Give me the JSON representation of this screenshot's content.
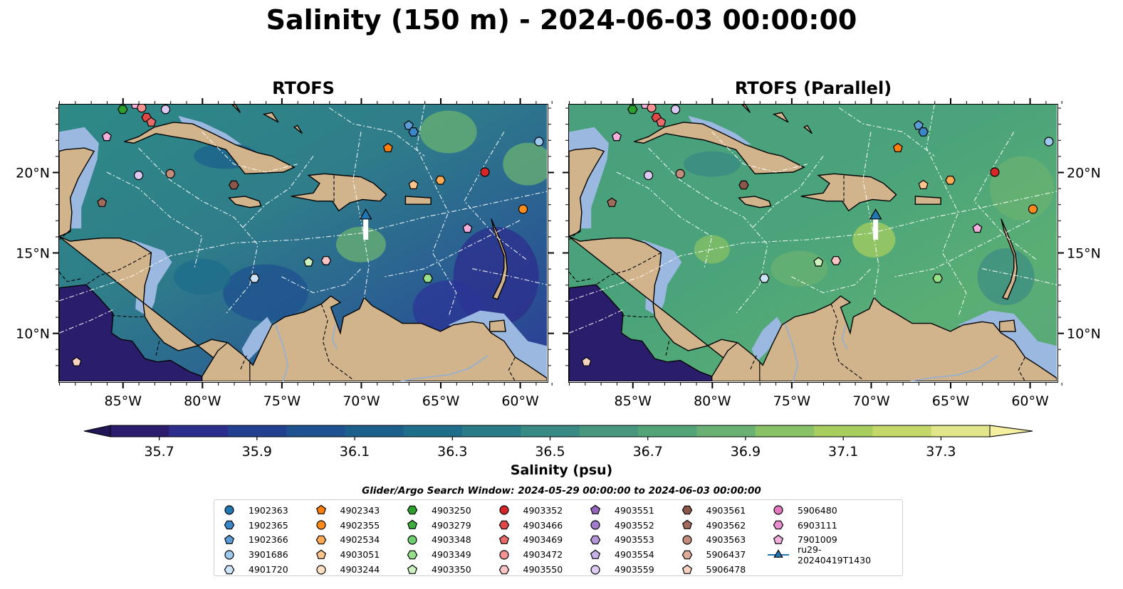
{
  "title": "Salinity (150 m) - 2024-06-03 00:00:00",
  "panels": [
    {
      "title": "RTOFS"
    },
    {
      "title": "RTOFS (Parallel)"
    }
  ],
  "axes": {
    "lon_labels": [
      "85°W",
      "80°W",
      "75°W",
      "70°W",
      "65°W",
      "60°W"
    ],
    "lon_values": [
      -85,
      -80,
      -75,
      -70,
      -65,
      -60
    ],
    "lat_labels": [
      "20°N",
      "15°N",
      "10°N"
    ],
    "lat_values": [
      20,
      15,
      10
    ],
    "lon_range": [
      -89,
      -58.3
    ],
    "lat_range": [
      7.0,
      24.2
    ]
  },
  "colorbar": {
    "label": "Salinity (psu)",
    "ticks": [
      "35.7",
      "35.9",
      "36.1",
      "36.3",
      "36.5",
      "36.7",
      "36.9",
      "37.1",
      "37.3"
    ],
    "tick_values": [
      35.7,
      35.9,
      36.1,
      36.3,
      36.5,
      36.7,
      36.9,
      37.1,
      37.3
    ],
    "range": [
      35.6,
      37.4
    ],
    "extend": "both",
    "colors": [
      "#2b1c6e",
      "#2c2d8c",
      "#233f8f",
      "#1d518f",
      "#1b608d",
      "#1e6e8b",
      "#2a7b88",
      "#388a84",
      "#47977f",
      "#54a479",
      "#69b172",
      "#88c166",
      "#a6cd5e",
      "#c4d86a",
      "#e2e68a"
    ]
  },
  "search_window": "Glider/Argo Search Window: 2024-05-29 00:00:00 to 2024-06-03 00:00:00",
  "map_colors": {
    "land": "#d2b48c",
    "shelf": "#9bb8e0",
    "pacific": "#2a1d6b"
  },
  "legend": {
    "items": [
      {
        "label": "1902363",
        "marker": "circle",
        "color": "#1f77b4"
      },
      {
        "label": "1902365",
        "marker": "hexagon",
        "color": "#3a86c8"
      },
      {
        "label": "1902366",
        "marker": "pentagon",
        "color": "#5a9bd8"
      },
      {
        "label": "3901686",
        "marker": "circle",
        "color": "#9ec9ee"
      },
      {
        "label": "4901720",
        "marker": "hexagon",
        "color": "#cde4f8"
      },
      {
        "label": "4902343",
        "marker": "pentagon",
        "color": "#ff7f0e"
      },
      {
        "label": "4902355",
        "marker": "circle",
        "color": "#ff8c1a"
      },
      {
        "label": "4902534",
        "marker": "hexagon",
        "color": "#ffaa55"
      },
      {
        "label": "4903051",
        "marker": "pentagon",
        "color": "#ffc48c"
      },
      {
        "label": "4903244",
        "marker": "circle",
        "color": "#ffe0c0"
      },
      {
        "label": "4903250",
        "marker": "hexagon",
        "color": "#2ca02c"
      },
      {
        "label": "4903279",
        "marker": "pentagon",
        "color": "#3caf3c"
      },
      {
        "label": "4903348",
        "marker": "circle",
        "color": "#6fcf6f"
      },
      {
        "label": "4903349",
        "marker": "hexagon",
        "color": "#98df8a"
      },
      {
        "label": "4903350",
        "marker": "pentagon",
        "color": "#ccf2c0"
      },
      {
        "label": "4903352",
        "marker": "circle",
        "color": "#d62728"
      },
      {
        "label": "4903466",
        "marker": "hexagon",
        "color": "#e04848"
      },
      {
        "label": "4903469",
        "marker": "pentagon",
        "color": "#eb6a6a"
      },
      {
        "label": "4903472",
        "marker": "circle",
        "color": "#f59393"
      },
      {
        "label": "4903550",
        "marker": "hexagon",
        "color": "#fbc4c4"
      },
      {
        "label": "4903551",
        "marker": "pentagon",
        "color": "#9467bd"
      },
      {
        "label": "4903552",
        "marker": "circle",
        "color": "#a27ccb"
      },
      {
        "label": "4903553",
        "marker": "hexagon",
        "color": "#b596d8"
      },
      {
        "label": "4903554",
        "marker": "pentagon",
        "color": "#c7b0e5"
      },
      {
        "label": "4903559",
        "marker": "circle",
        "color": "#dccaf2"
      },
      {
        "label": "4903561",
        "marker": "hexagon",
        "color": "#8c564b"
      },
      {
        "label": "4903562",
        "marker": "pentagon",
        "color": "#a06a5c"
      },
      {
        "label": "4903563",
        "marker": "circle",
        "color": "#c48c7c"
      },
      {
        "label": "5906437",
        "marker": "hexagon",
        "color": "#e0ab9a"
      },
      {
        "label": "5906478",
        "marker": "pentagon",
        "color": "#f8d3c2"
      },
      {
        "label": "5906480",
        "marker": "circle",
        "color": "#e377c2"
      },
      {
        "label": "6903111",
        "marker": "hexagon",
        "color": "#e98fcf"
      },
      {
        "label": "7901009",
        "marker": "pentagon",
        "color": "#f2aedd"
      },
      {
        "label": "ru29-20240419T1430",
        "marker": "triangle",
        "color": "#1f77b4"
      }
    ]
  },
  "floats": [
    {
      "lon": -85.0,
      "lat": 23.9,
      "marker": "hexagon",
      "color": "#2ca02c"
    },
    {
      "lon": -84.2,
      "lat": 24.2,
      "marker": "pentagon",
      "color": "#f2aedd"
    },
    {
      "lon": -83.8,
      "lat": 24.0,
      "marker": "circle",
      "color": "#f59393"
    },
    {
      "lon": -82.3,
      "lat": 23.9,
      "marker": "circle",
      "color": "#dccaf2"
    },
    {
      "lon": -83.5,
      "lat": 23.4,
      "marker": "hexagon",
      "color": "#e04848"
    },
    {
      "lon": -83.2,
      "lat": 23.1,
      "marker": "pentagon",
      "color": "#eb6a6a"
    },
    {
      "lon": -86.0,
      "lat": 22.2,
      "marker": "pentagon",
      "color": "#f2aedd"
    },
    {
      "lon": -84.0,
      "lat": 19.8,
      "marker": "circle",
      "color": "#dccaf2"
    },
    {
      "lon": -82.0,
      "lat": 19.9,
      "marker": "circle",
      "color": "#c48c7c"
    },
    {
      "lon": -78.0,
      "lat": 19.2,
      "marker": "hexagon",
      "color": "#8c564b"
    },
    {
      "lon": -86.3,
      "lat": 18.1,
      "marker": "pentagon",
      "color": "#a06a5c"
    },
    {
      "lon": -67.0,
      "lat": 22.9,
      "marker": "pentagon",
      "color": "#5a9bd8"
    },
    {
      "lon": -66.7,
      "lat": 22.5,
      "marker": "hexagon",
      "color": "#3a86c8"
    },
    {
      "lon": -68.3,
      "lat": 21.5,
      "marker": "pentagon",
      "color": "#ff7f0e"
    },
    {
      "lon": -58.8,
      "lat": 21.9,
      "marker": "circle",
      "color": "#9ec9ee"
    },
    {
      "lon": -62.2,
      "lat": 20.0,
      "marker": "circle",
      "color": "#d62728"
    },
    {
      "lon": -65.0,
      "lat": 19.5,
      "marker": "hexagon",
      "color": "#ffaa55"
    },
    {
      "lon": -66.7,
      "lat": 19.2,
      "marker": "pentagon",
      "color": "#ffc48c"
    },
    {
      "lon": -59.8,
      "lat": 17.7,
      "marker": "circle",
      "color": "#ff8c1a"
    },
    {
      "lon": -63.3,
      "lat": 16.5,
      "marker": "pentagon",
      "color": "#f2aedd"
    },
    {
      "lon": -73.3,
      "lat": 14.4,
      "marker": "pentagon",
      "color": "#ccf2c0"
    },
    {
      "lon": -72.2,
      "lat": 14.5,
      "marker": "hexagon",
      "color": "#fbc4c4"
    },
    {
      "lon": -76.7,
      "lat": 13.4,
      "marker": "hexagon",
      "color": "#cde4f8"
    },
    {
      "lon": -65.8,
      "lat": 13.4,
      "marker": "hexagon",
      "color": "#98df8a"
    },
    {
      "lon": -87.9,
      "lat": 8.2,
      "marker": "pentagon",
      "color": "#f8d3c2"
    }
  ],
  "glider": {
    "lon": -69.7,
    "lat": 17.2,
    "track_end_lat": 15.8
  }
}
